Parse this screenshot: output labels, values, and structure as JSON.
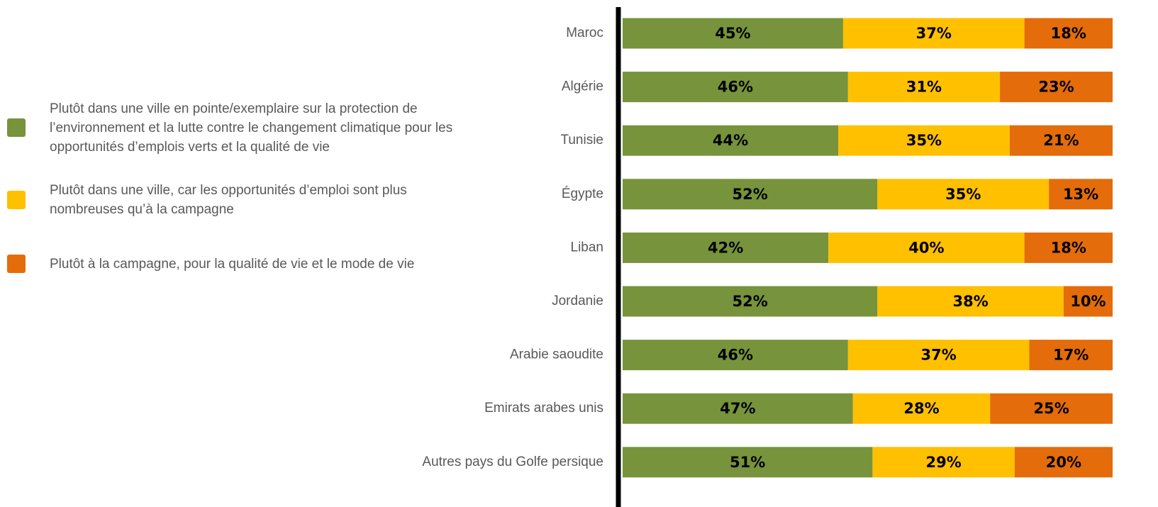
{
  "chart_data": {
    "type": "stacked_bar_horizontal",
    "categories": [
      "Maroc",
      "Algérie",
      "Tunisie",
      "Égypte",
      "Liban",
      "Jordanie",
      "Arabie saoudite",
      "Emirats arabes unis",
      "Autres pays du Golfe persique"
    ],
    "series": [
      {
        "name": "Plutôt dans une ville en pointe/exemplaire sur la protection de l’environnement et la lutte contre le changement climatique pour les opportunités d’emplois verts et la qualité de vie",
        "color": "#77933c",
        "values": [
          45,
          46,
          44,
          52,
          42,
          52,
          46,
          47,
          51
        ],
        "value_labels": [
          "45%",
          "46%",
          "44%",
          "52%",
          "42%",
          "52%",
          "46%",
          "47%",
          "51%"
        ]
      },
      {
        "name": "Plutôt dans une ville, car les opportunités d’emploi sont plus nombreuses qu’à la campagne",
        "color": "#ffc000",
        "values": [
          37,
          31,
          35,
          35,
          40,
          38,
          37,
          28,
          29
        ],
        "value_labels": [
          "37%",
          "31%",
          "35%",
          "35%",
          "40%",
          "38%",
          "37%",
          "28%",
          "29%"
        ]
      },
      {
        "name": "Plutôt à la campagne, pour la qualité de vie et le mode de vie",
        "color": "#e46c0a",
        "values": [
          18,
          23,
          21,
          13,
          18,
          10,
          17,
          25,
          20
        ],
        "value_labels": [
          "18%",
          "23%",
          "21%",
          "13%",
          "18%",
          "10%",
          "17%",
          "25%",
          "20%"
        ]
      }
    ],
    "xlim": [
      0,
      100
    ]
  }
}
